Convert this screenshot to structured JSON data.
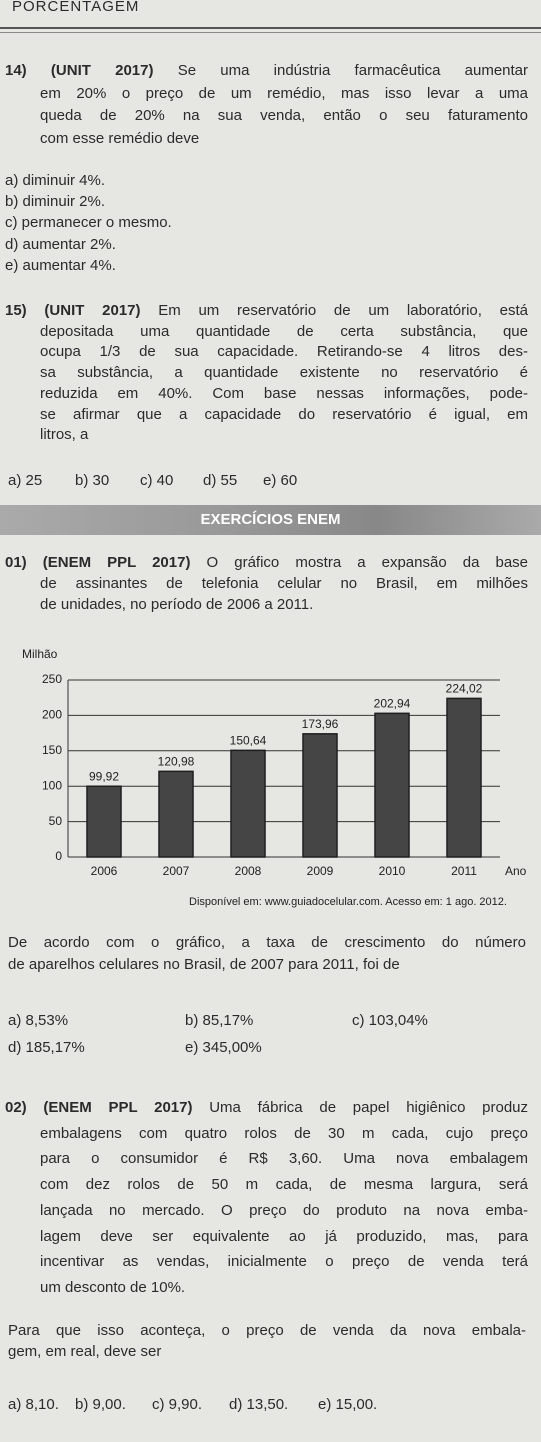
{
  "header": {
    "title": "PORCENTAGEM"
  },
  "q14": {
    "number": "14)",
    "source": "(UNIT 2017)",
    "lines": [
      "Se uma indústria farmacêutica aumentar",
      "em 20% o preço de um remédio, mas isso levar a uma",
      "queda de 20% na sua venda, então o seu faturamento",
      "com esse remédio deve"
    ],
    "options": [
      "a) diminuir 4%.",
      "b) diminuir 2%.",
      "c) permanecer o mesmo.",
      "d) aumentar 2%.",
      "e) aumentar 4%."
    ]
  },
  "q15": {
    "number": "15)",
    "source": "(UNIT 2017)",
    "lines": [
      "Em um reservatório de um laboratório, está",
      "depositada uma quantidade de certa substância, que",
      "ocupa 1/3 de sua capacidade. Retirando-se 4 litros des-",
      "sa substância, a quantidade existente no reservatório é",
      "reduzida em 40%. Com base nessas informações, pode-",
      "se afirmar que a capacidade do reservatório é igual, em",
      "litros, a"
    ],
    "options": [
      "a) 25",
      "b) 30",
      "c) 40",
      "d) 55",
      "e) 60"
    ]
  },
  "section": {
    "title": "EXERCÍCIOS ENEM"
  },
  "q01": {
    "number": "01)",
    "source": "(ENEM PPL 2017)",
    "lines": [
      "O gráfico mostra a expansão da base",
      "de assinantes de telefonia celular no Brasil, em milhões",
      "de unidades, no período de 2006 a 2011."
    ],
    "after": [
      "De acordo com o gráfico, a taxa de crescimento do número",
      "de aparelhos celulares no Brasil, de 2007 para 2011, foi de"
    ],
    "options": [
      "a) 8,53%",
      "b) 85,17%",
      "c) 103,04%",
      "d) 185,17%",
      "e) 345,00%"
    ]
  },
  "q02": {
    "number": "02)",
    "source": "(ENEM PPL 2017)",
    "lines": [
      "Uma fábrica de papel higiênico produz",
      "embalagens com quatro rolos de 30 m cada, cujo preço",
      "para o consumidor é R$ 3,60. Uma nova embalagem",
      "com dez rolos de 50 m cada, de mesma largura, será",
      "lançada no mercado. O preço do produto na nova emba-",
      "lagem deve ser equivalente ao já produzido, mas, para",
      "incentivar as vendas, inicialmente o preço de venda terá",
      "um desconto de 10%."
    ],
    "after": [
      "Para que isso aconteça, o preço de venda da nova embala-",
      "gem, em real, deve ser"
    ],
    "options": [
      "a) 8,10.",
      "b) 9,00.",
      "c) 9,90.",
      "d) 13,50.",
      "e) 15,00."
    ]
  },
  "chart_data": {
    "type": "bar",
    "y_label": "Milhão",
    "x_label": "Ano",
    "source": "Disponível em: www.guiadocelular.com. Acesso em: 1 ago. 2012.",
    "categories": [
      "2006",
      "2007",
      "2008",
      "2009",
      "2010",
      "2011"
    ],
    "values": [
      99.92,
      120.98,
      150.64,
      173.96,
      202.94,
      224.02
    ],
    "value_labels": [
      "99,92",
      "120,98",
      "150,64",
      "173,96",
      "202,94",
      "224,02"
    ],
    "color": "#454545",
    "ylim": [
      0,
      250
    ],
    "yticks": [
      0,
      50,
      100,
      150,
      200,
      250
    ],
    "grid": true
  }
}
